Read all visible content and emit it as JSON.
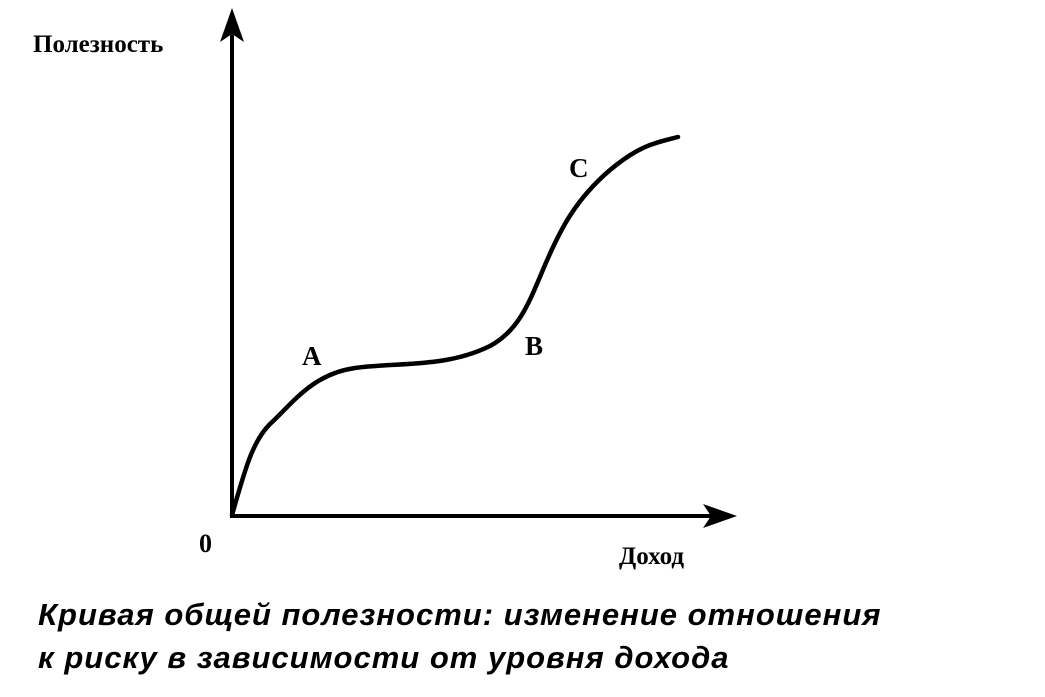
{
  "axes": {
    "y_label": "Полезность",
    "x_label": "Доход",
    "origin": "0"
  },
  "points": [
    {
      "label": "A"
    },
    {
      "label": "B"
    },
    {
      "label": "C"
    }
  ],
  "caption": {
    "lines": [
      "Кривая общей полезности: изменение отношения",
      "к риску в зависимости от уровня дохода"
    ]
  }
}
